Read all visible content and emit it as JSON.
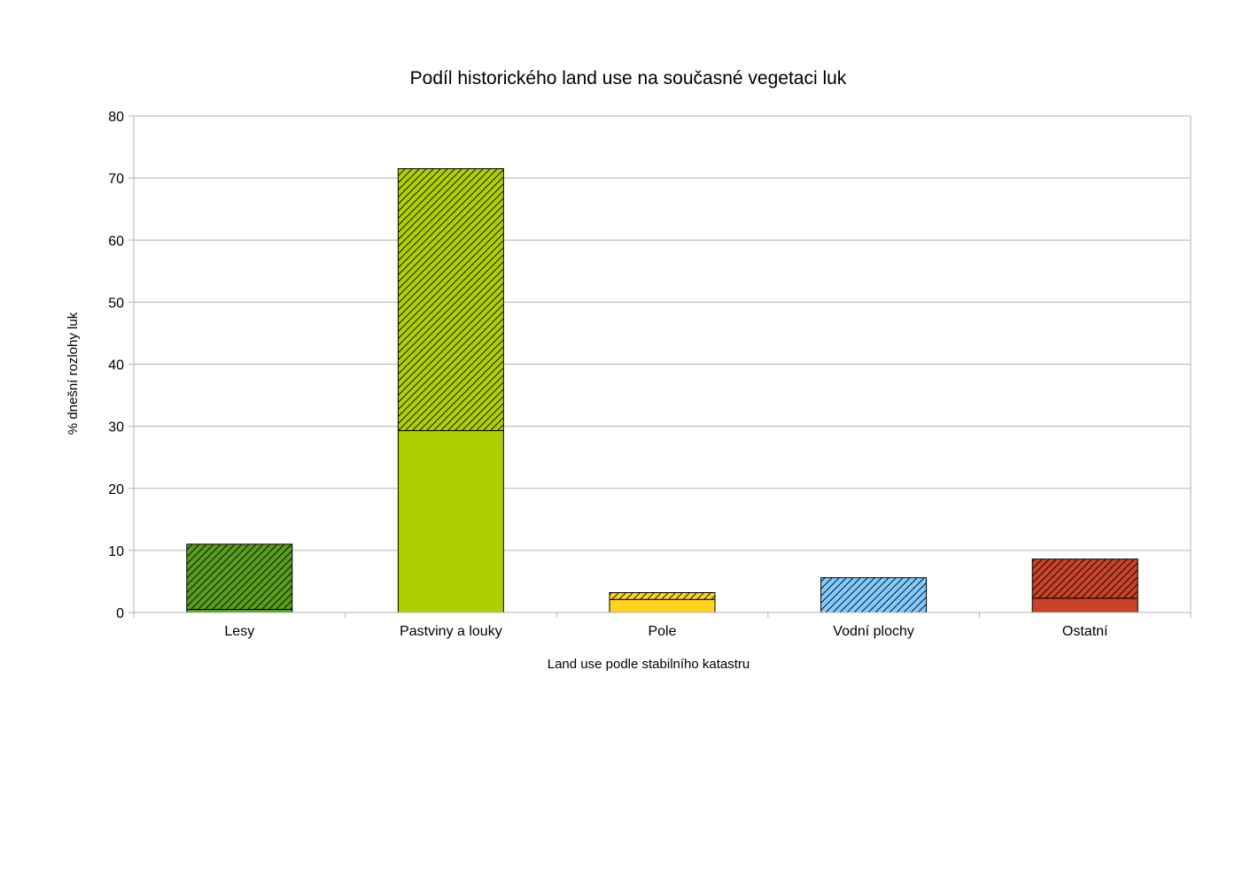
{
  "chart_data": {
    "type": "bar",
    "stacked": true,
    "title": "Podíl historického land use na současné vegetaci luk",
    "xlabel": "Land use podle stabilního katastru",
    "ylabel": "% dnešní rozlohy luk",
    "ylim": [
      0,
      80
    ],
    "yticks": [
      0,
      10,
      20,
      30,
      40,
      50,
      60,
      70,
      80
    ],
    "grid": true,
    "legend": "none",
    "categories": [
      "Lesy",
      "Pastviny a louky",
      "Pole",
      "Vodní plochy",
      "Ostatní"
    ],
    "colors": [
      "#579d1c",
      "#aecf00",
      "#ffd320",
      "#83caff",
      "#c9422a"
    ],
    "series": [
      {
        "fill": "solid",
        "values": [
          0.5,
          29.3,
          2.1,
          0.0,
          2.3
        ]
      },
      {
        "fill": "hatched",
        "values": [
          10.5,
          42.2,
          1.1,
          5.6,
          6.3
        ]
      }
    ]
  }
}
